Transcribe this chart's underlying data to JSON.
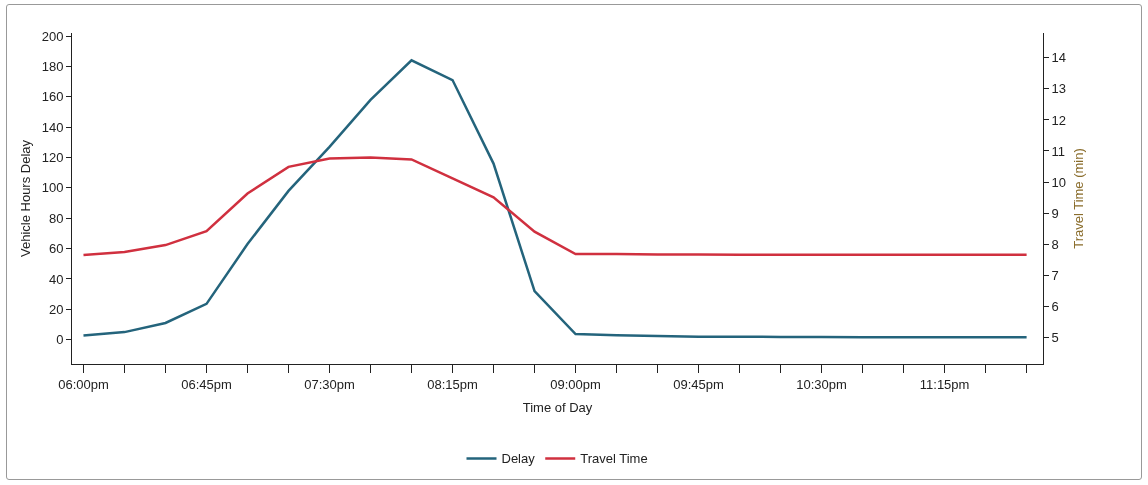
{
  "chart_data": {
    "type": "line",
    "xlabel": "Time of Day",
    "ylabel": "Vehicle Hours Delay",
    "y2label": "Travel Time (min)",
    "x": [
      18,
      18.25,
      18.5,
      18.75,
      19,
      19.25,
      19.5,
      19.75,
      20,
      20.25,
      20.5,
      20.75,
      21,
      21.25,
      21.5,
      21.75,
      22,
      22.25,
      22.5,
      22.75,
      23,
      23.25,
      23.5,
      23.75
    ],
    "series": [
      {
        "name": "Delay",
        "color": "#24647c",
        "values": [
          2.7,
          5,
          11,
          23.6,
          63,
          98,
          127,
          158,
          184,
          171,
          116,
          32,
          3.7,
          3,
          2.5,
          2,
          2,
          1.8,
          1.8,
          1.6,
          1.6,
          1.6,
          1.6,
          1.6
        ]
      },
      {
        "name": "Travel Time",
        "color": "#d0303f",
        "axis": "y2",
        "values": [
          7.65,
          7.75,
          7.97,
          8.42,
          9.63,
          10.49,
          10.76,
          10.79,
          10.73,
          10.12,
          9.51,
          8.4,
          7.68,
          7.68,
          7.67,
          7.67,
          7.66,
          7.66,
          7.66,
          7.66,
          7.66,
          7.66,
          7.66,
          7.66
        ]
      }
    ],
    "xlim": [
      17.93,
      23.85
    ],
    "xticks": [
      {
        "value": 18,
        "label": "06:00pm"
      },
      {
        "value": 18.25,
        "label": null
      },
      {
        "value": 18.5,
        "label": null
      },
      {
        "value": 18.75,
        "label": "06:45pm"
      },
      {
        "value": 19,
        "label": null
      },
      {
        "value": 19.25,
        "label": null
      },
      {
        "value": 19.5,
        "label": "07:30pm"
      },
      {
        "value": 19.75,
        "label": null
      },
      {
        "value": 20,
        "label": null
      },
      {
        "value": 20.25,
        "label": "08:15pm"
      },
      {
        "value": 20.5,
        "label": null
      },
      {
        "value": 20.75,
        "label": null
      },
      {
        "value": 21,
        "label": "09:00pm"
      },
      {
        "value": 21.25,
        "label": null
      },
      {
        "value": 21.5,
        "label": null
      },
      {
        "value": 21.75,
        "label": "09:45pm"
      },
      {
        "value": 22,
        "label": null
      },
      {
        "value": 22.25,
        "label": null
      },
      {
        "value": 22.5,
        "label": "10:30pm"
      },
      {
        "value": 22.75,
        "label": null
      },
      {
        "value": 23,
        "label": null
      },
      {
        "value": 23.25,
        "label": "11:15pm"
      },
      {
        "value": 23.5,
        "label": null
      },
      {
        "value": 23.75,
        "label": null
      }
    ],
    "ylim": [
      -16,
      202
    ],
    "yticks": [
      0,
      20,
      40,
      60,
      80,
      100,
      120,
      140,
      160,
      180,
      200
    ],
    "y2lim": [
      4.14,
      14.8
    ],
    "y2ticks": [
      5,
      6,
      7,
      8,
      9,
      10,
      11,
      12,
      13,
      14
    ],
    "grid": false,
    "legend": "bottom",
    "marker": "none",
    "line_style": "solid"
  }
}
